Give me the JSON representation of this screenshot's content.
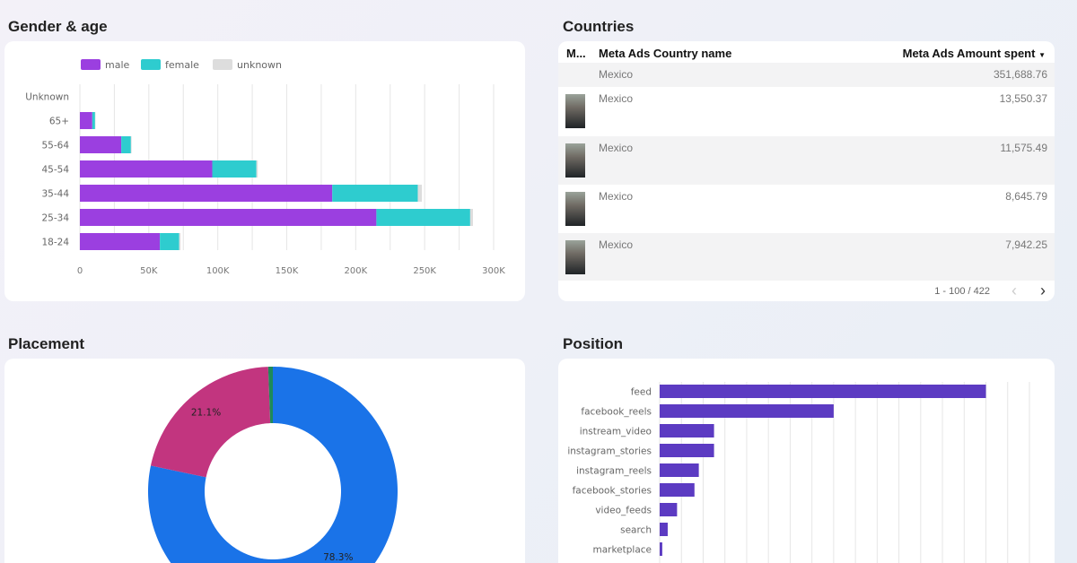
{
  "gender_age": {
    "title": "Gender & age",
    "chart_data": {
      "type": "bar",
      "orientation": "horizontal",
      "stacked": true,
      "categories": [
        "Unknown",
        "65+",
        "55-64",
        "45-54",
        "35-44",
        "25-34",
        "18-24"
      ],
      "series": [
        {
          "name": "male",
          "color": "#9b3fe0",
          "values": [
            0,
            9000,
            30000,
            96000,
            183000,
            215000,
            58000
          ]
        },
        {
          "name": "female",
          "color": "#2ecccf",
          "values": [
            0,
            2000,
            7000,
            32000,
            62000,
            68000,
            14000
          ]
        },
        {
          "name": "unknown",
          "color": "#dddddd",
          "values": [
            0,
            300,
            500,
            1000,
            3000,
            2000,
            1000
          ]
        }
      ],
      "xlim": [
        0,
        300000
      ],
      "xticks": [
        "0",
        "50K",
        "100K",
        "150K",
        "200K",
        "250K",
        "300K"
      ],
      "grid": true,
      "legend": "top-left"
    }
  },
  "countries": {
    "title": "Countries",
    "columns": [
      "M...",
      "Meta Ads Country name",
      "Meta Ads Amount spent"
    ],
    "sort_icon": "caret-down-icon",
    "rows": [
      {
        "country": "Mexico",
        "amount": "351,688.76",
        "thumb": false
      },
      {
        "country": "Mexico",
        "amount": "13,550.37",
        "thumb": true
      },
      {
        "country": "Mexico",
        "amount": "11,575.49",
        "thumb": true
      },
      {
        "country": "Mexico",
        "amount": "8,645.79",
        "thumb": true
      },
      {
        "country": "Mexico",
        "amount": "7,942.25",
        "thumb": true
      }
    ],
    "pagination": "1 - 100 / 422"
  },
  "placement": {
    "title": "Placement",
    "chart_data": {
      "type": "pie",
      "donut": true,
      "slices": [
        {
          "value": 78.3,
          "label": "78.3%",
          "color": "#1a73e8"
        },
        {
          "value": 21.1,
          "label": "21.1%",
          "color": "#c2357f"
        },
        {
          "value": 0.6,
          "label": "",
          "color": "#1e8a5a"
        }
      ]
    }
  },
  "position": {
    "title": "Position",
    "chart_data": {
      "type": "bar",
      "orientation": "horizontal",
      "categories": [
        "feed",
        "facebook_reels",
        "instream_video",
        "instagram_stories",
        "instagram_reels",
        "facebook_stories",
        "video_feeds",
        "search",
        "marketplace"
      ],
      "values": [
        15,
        8.0,
        2.5,
        2.5,
        1.8,
        1.6,
        0.8,
        0.37,
        0.12
      ],
      "xlim": [
        0,
        17
      ],
      "color": "#5c3bc2",
      "grid": true
    }
  }
}
